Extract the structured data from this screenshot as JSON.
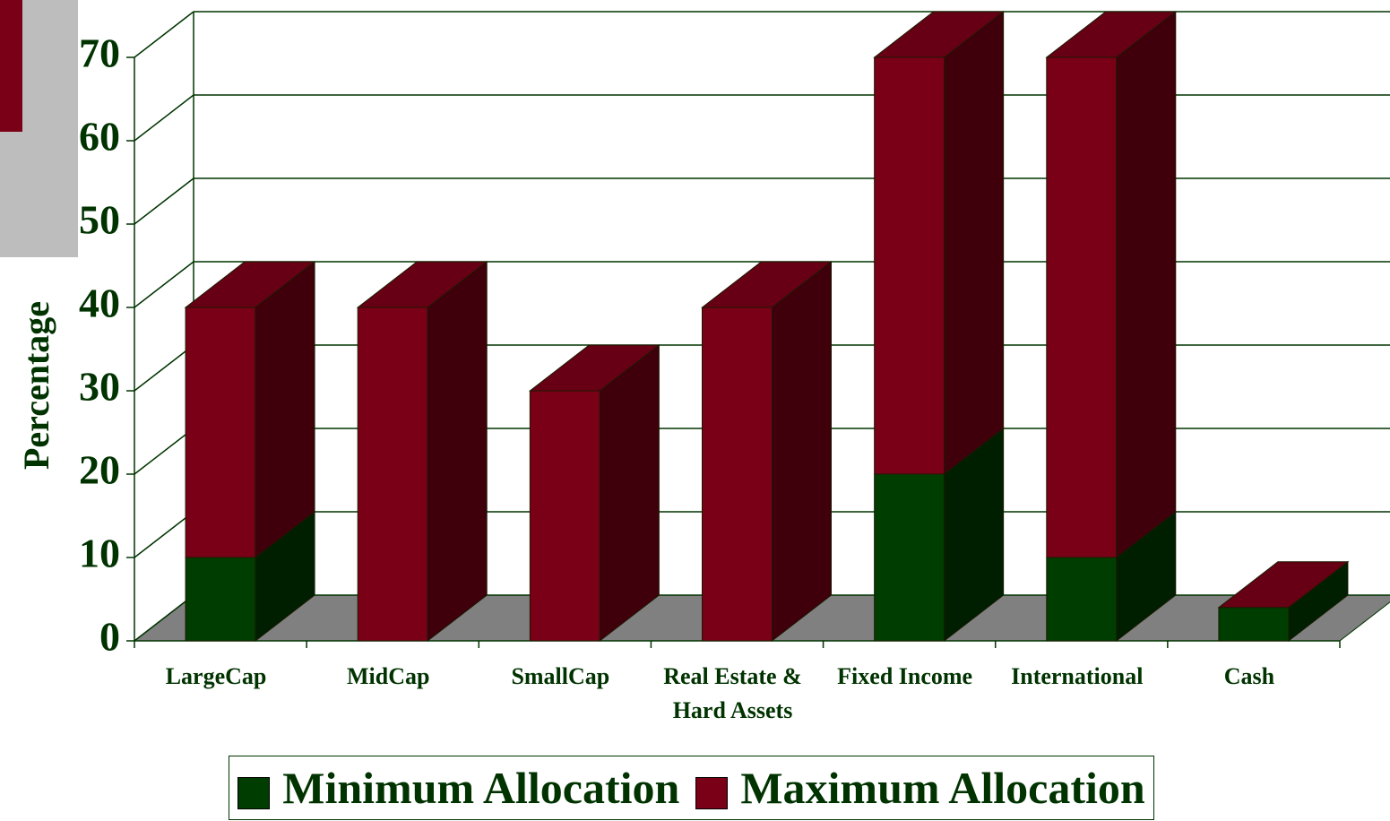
{
  "chart_data": {
    "type": "bar3d_stacked",
    "y_label": "Percentage",
    "categories": [
      "LargeCap",
      "MidCap",
      "SmallCap",
      "Real Estate & Hard Assets",
      "Fixed Income",
      "International",
      "Cash"
    ],
    "series": [
      {
        "name": "Minimum Allocation",
        "color": "#003d00",
        "values": [
          10,
          0,
          0,
          0,
          20,
          10,
          4
        ]
      },
      {
        "name": "Maximum Allocation",
        "color": "#7a0018",
        "values": [
          30,
          40,
          30,
          40,
          50,
          60,
          0
        ]
      }
    ],
    "ylim": [
      0,
      70
    ],
    "yticks": [
      0,
      10,
      20,
      30,
      40,
      50,
      60,
      70
    ],
    "grid": true
  }
}
